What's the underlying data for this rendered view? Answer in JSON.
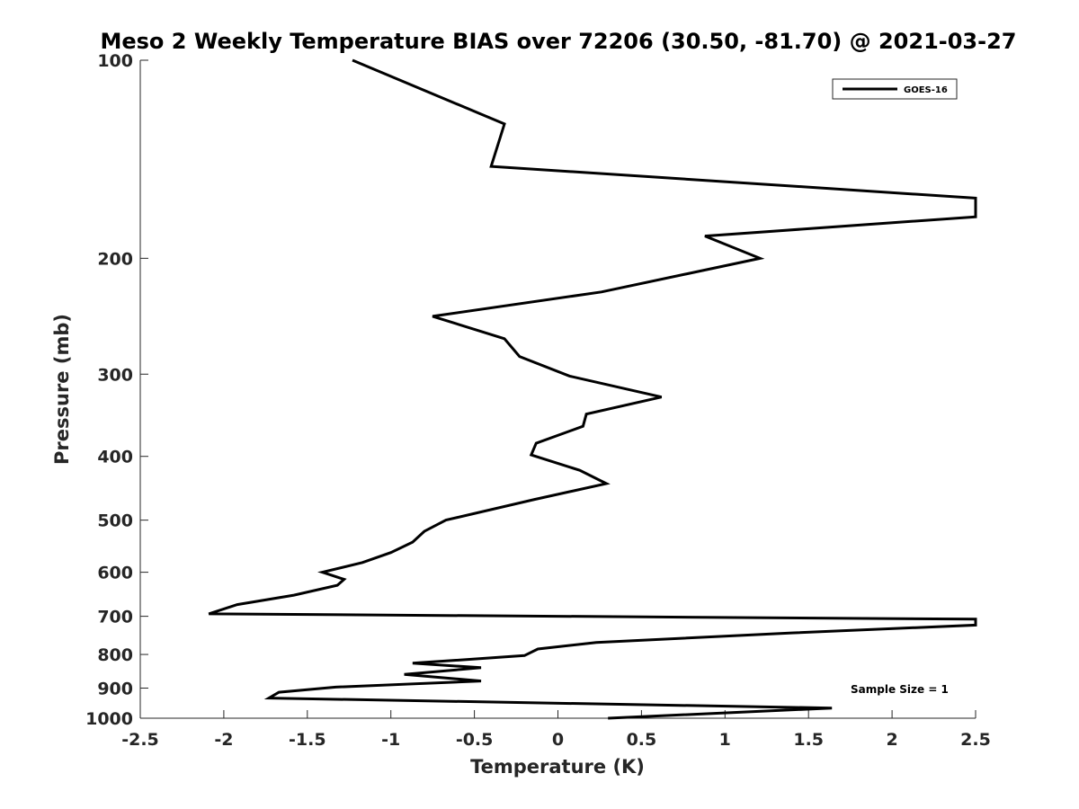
{
  "chart_data": {
    "type": "line",
    "title": "Meso 2 Weekly Temperature BIAS over 72206 (30.50, -81.70) @ 2021-03-27",
    "xlabel": "Temperature (K)",
    "ylabel": "Pressure (mb)",
    "xlim": [
      -2.5,
      2.5
    ],
    "ylim": [
      100,
      1000
    ],
    "y_scale": "log",
    "y_reversed": true,
    "x_ticks": [
      "-2.5",
      "-2",
      "-1.5",
      "-1",
      "-0.5",
      "0",
      "0.5",
      "1",
      "1.5",
      "2",
      "2.5"
    ],
    "x_tick_values": [
      -2.5,
      -2,
      -1.5,
      -1,
      -0.5,
      0,
      0.5,
      1,
      1.5,
      2,
      2.5
    ],
    "y_ticks": [
      "100",
      "200",
      "300",
      "400",
      "500",
      "600",
      "700",
      "800",
      "900",
      "1000"
    ],
    "y_tick_values": [
      100,
      200,
      300,
      400,
      500,
      600,
      700,
      800,
      900,
      1000
    ],
    "grid": false,
    "legend_position": "top-right",
    "annotation": "Sample Size = 1",
    "line_color": "#000000",
    "series": [
      {
        "name": "GOES-16",
        "x": [
          -1.23,
          -0.32,
          -0.4,
          2.5,
          2.5,
          0.88,
          1.21,
          0.26,
          -0.75,
          -0.32,
          -0.23,
          0.07,
          0.62,
          0.17,
          0.15,
          -0.13,
          -0.16,
          0.13,
          0.29,
          -0.14,
          -0.67,
          -0.8,
          -0.87,
          -1.0,
          -1.17,
          -1.41,
          -1.28,
          -1.32,
          -1.58,
          -1.92,
          -2.09,
          2.5,
          2.5,
          1.4,
          0.23,
          -0.12,
          -0.2,
          -0.87,
          -0.46,
          -0.92,
          -0.46,
          -1.33,
          -1.67,
          -1.73,
          1.64,
          0.3
        ],
        "y": [
          100,
          125,
          145,
          162,
          173,
          185,
          200,
          225,
          245,
          265,
          282,
          302,
          325,
          345,
          360,
          382,
          398,
          420,
          440,
          465,
          500,
          520,
          540,
          560,
          580,
          600,
          615,
          628,
          650,
          672,
          694,
          707,
          722,
          742,
          767,
          785,
          803,
          825,
          838,
          858,
          878,
          897,
          913,
          932,
          965,
          1000
        ]
      }
    ]
  }
}
